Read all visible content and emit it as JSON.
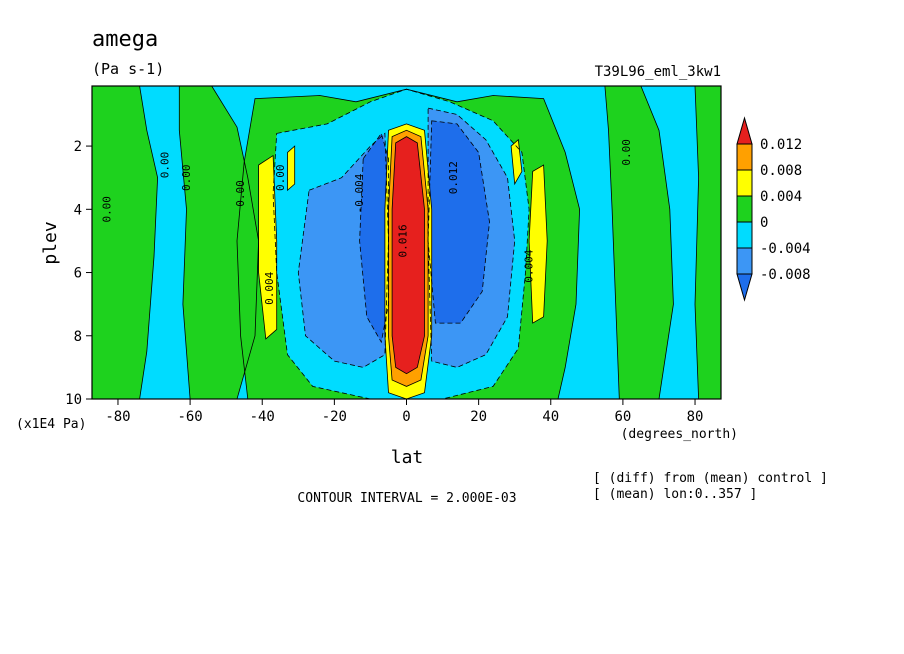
{
  "chart_data": {
    "type": "heatmap",
    "title": "amega",
    "units": "(Pa s-1)",
    "run_label": "T39L96_eml_3kw1",
    "xlabel": "lat",
    "xunits": "(degrees_north)",
    "ylabel": "plev",
    "yunits": "(x1E4 Pa)",
    "x_ticks": [
      -80,
      -60,
      -40,
      -20,
      0,
      20,
      40,
      60,
      80
    ],
    "x_tick_labels": [
      "-80",
      "-60",
      "-40",
      "-20",
      "0",
      "20",
      "40",
      "60",
      "80"
    ],
    "y_ticks": [
      2,
      4,
      6,
      8,
      10
    ],
    "y_tick_labels": [
      "2",
      "4",
      "6",
      "8",
      "10"
    ],
    "xlim": [
      -87.2,
      87.2
    ],
    "ylim": [
      10,
      0.1
    ],
    "contour_interval_text": "CONTOUR INTERVAL = 2.000E-03",
    "notes": [
      "[ (diff) from (mean) control ]",
      "[ (mean) lon:0..357 ]"
    ],
    "colorbar": {
      "levels": [
        -0.008,
        -0.004,
        0,
        0.004,
        0.008,
        0.012
      ],
      "labels": [
        "-0.008",
        "-0.004",
        "0",
        "0.004",
        "0.008",
        "0.012"
      ],
      "colors": [
        "#1e6eeb",
        "#3c96f5",
        "#00dcff",
        "#1ed21e",
        "#ffff00",
        "#ffa000",
        "#e6201e"
      ]
    },
    "regions": [
      {
        "name": "strong-neg-left",
        "value": -0.008,
        "lat": [
          -34,
          -10
        ],
        "plev": [
          3.2,
          8.8
        ]
      },
      {
        "name": "strong-neg-right",
        "value": -0.008,
        "lat": [
          8,
          30
        ],
        "plev": [
          1.2,
          8.6
        ]
      },
      {
        "name": "pos-core",
        "value": 0.014,
        "lat": [
          -4,
          6
        ],
        "plev": [
          1.2,
          9.6
        ]
      },
      {
        "name": "pos-south",
        "value": 0.006,
        "lat": [
          -42,
          -35
        ],
        "plev": [
          2.2,
          8.2
        ]
      },
      {
        "name": "pos-north",
        "value": 0.005,
        "lat": [
          34,
          40
        ],
        "plev": [
          2.5,
          7.6
        ]
      }
    ],
    "contour_labels": [
      "0.00",
      "0.00",
      "0.00",
      "0.00",
      "0.00",
      "0.00",
      "0.004",
      "0.004",
      "0.016",
      "-0.004",
      "0.012"
    ],
    "grid": false,
    "legend": "right"
  }
}
